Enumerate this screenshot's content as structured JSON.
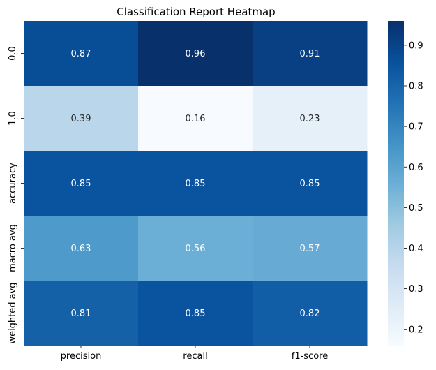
{
  "chart_data": {
    "type": "heatmap",
    "title": "Classification Report Heatmap",
    "columns": [
      "precision",
      "recall",
      "f1-score"
    ],
    "rows": [
      "0.0",
      "1.0",
      "accuracy",
      "macro avg",
      "weighted avg"
    ],
    "values": [
      [
        0.87,
        0.96,
        0.91
      ],
      [
        0.39,
        0.16,
        0.23
      ],
      [
        0.85,
        0.85,
        0.85
      ],
      [
        0.63,
        0.56,
        0.57
      ],
      [
        0.81,
        0.85,
        0.82
      ]
    ],
    "labels": [
      [
        "0.87",
        "0.96",
        "0.91"
      ],
      [
        "0.39",
        "0.16",
        "0.23"
      ],
      [
        "0.85",
        "0.85",
        "0.85"
      ],
      [
        "0.63",
        "0.56",
        "0.57"
      ],
      [
        "0.81",
        "0.85",
        "0.82"
      ]
    ],
    "colormap": "Blues",
    "vmin": 0.16,
    "vmax": 0.96,
    "colorbar_ticks": [
      0.2,
      0.3,
      0.4,
      0.5,
      0.6,
      0.7,
      0.8,
      0.9
    ],
    "colorbar_tick_labels": [
      "0.2",
      "0.3",
      "0.4",
      "0.5",
      "0.6",
      "0.7",
      "0.8",
      "0.9"
    ],
    "colors": {
      "low": "#f7fbff",
      "high": "#08306b",
      "annotation_light": "#ffffff",
      "annotation_dark": "#262626"
    }
  }
}
